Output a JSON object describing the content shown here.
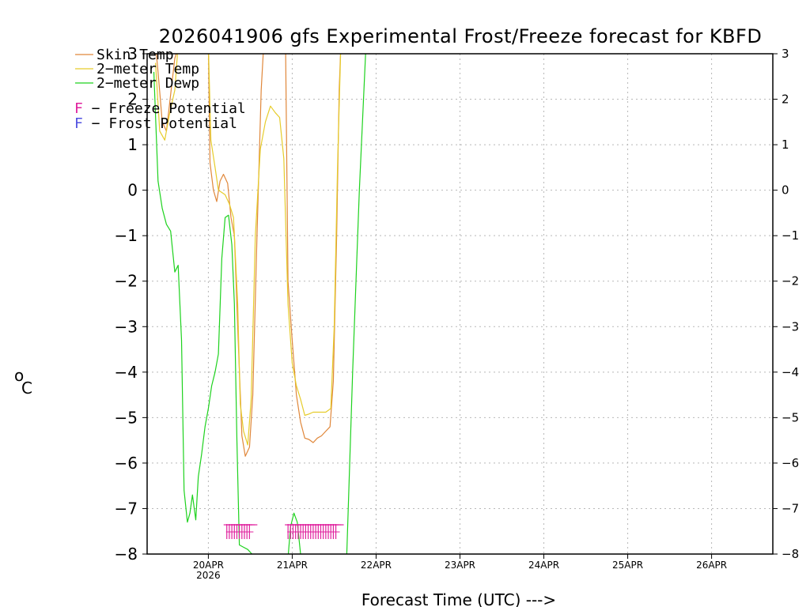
{
  "chart_data": {
    "type": "line",
    "title": "2026041906 gfs Experimental Frost/Freeze forecast for KBFD",
    "xlabel": "Forecast Time (UTC) --->",
    "ylabel": "°C",
    "ylabel_unit": "o",
    "ylabel_letter": "C",
    "ylim": [
      -8,
      3
    ],
    "xlim_days": [
      -0.73,
      6.73
    ],
    "y_ticks": [
      3,
      2,
      1,
      0,
      -1,
      -2,
      -3,
      -4,
      -5,
      -6,
      -7,
      -8
    ],
    "y_tick_labels_left": [
      "3",
      "2",
      "1",
      "0",
      "−1",
      "−2",
      "−3",
      "−4",
      "−5",
      "−6",
      "−7",
      "−8"
    ],
    "y_tick_labels_right": [
      "3",
      "2",
      "1",
      "0",
      "−1",
      "−2",
      "−3",
      "−4",
      "−5",
      "−6",
      "−7",
      "−8"
    ],
    "x_ticks": [
      {
        "day": 0,
        "label": "20APR",
        "sublabel": "2026"
      },
      {
        "day": 1,
        "label": "21APR",
        "sublabel": ""
      },
      {
        "day": 2,
        "label": "22APR",
        "sublabel": ""
      },
      {
        "day": 3,
        "label": "23APR",
        "sublabel": ""
      },
      {
        "day": 4,
        "label": "24APR",
        "sublabel": ""
      },
      {
        "day": 5,
        "label": "25APR",
        "sublabel": ""
      },
      {
        "day": 6,
        "label": "26APR",
        "sublabel": ""
      }
    ],
    "grid": true,
    "legend": [
      {
        "name": "Skin Temp",
        "color": "#e0873a"
      },
      {
        "name": "2-meter Temp",
        "color": "#e6cc2a"
      },
      {
        "name": "2-meter Dewp",
        "color": "#1ed21e"
      }
    ],
    "legend_text": [
      "Skin Temp",
      "2−meter Temp",
      "2−meter Dewp"
    ],
    "annotations": [
      {
        "letter": "F",
        "text": " − Freeze Potential",
        "color": "#e0209e"
      },
      {
        "letter": "F",
        "text": " − Frost Potential",
        "color": "#5050e0"
      }
    ],
    "series": [
      {
        "name": "Skin Temp",
        "color": "#e0873a",
        "points": [
          [
            -0.63,
            3.2
          ],
          [
            -0.6,
            2.6
          ],
          [
            -0.55,
            1.5
          ],
          [
            -0.5,
            1.3
          ],
          [
            -0.45,
            2.1
          ],
          [
            -0.4,
            2.9
          ],
          [
            -0.35,
            3.2
          ],
          [
            0,
            3.2
          ],
          [
            0.02,
            0.6
          ],
          [
            0.06,
            0.0
          ],
          [
            0.1,
            -0.25
          ],
          [
            0.14,
            0.2
          ],
          [
            0.18,
            0.35
          ],
          [
            0.23,
            0.15
          ],
          [
            0.27,
            -0.6
          ],
          [
            0.31,
            -1.0
          ],
          [
            0.35,
            -3.0
          ],
          [
            0.4,
            -5.4
          ],
          [
            0.44,
            -5.85
          ],
          [
            0.49,
            -5.65
          ],
          [
            0.53,
            -4.5
          ],
          [
            0.58,
            -1.0
          ],
          [
            0.63,
            2.2
          ],
          [
            0.66,
            3.2
          ],
          [
            0.92,
            3.2
          ],
          [
            0.95,
            -2.0
          ],
          [
            1.0,
            -3.3
          ],
          [
            1.05,
            -4.5
          ],
          [
            1.1,
            -5.1
          ],
          [
            1.15,
            -5.45
          ],
          [
            1.2,
            -5.48
          ],
          [
            1.25,
            -5.55
          ],
          [
            1.3,
            -5.45
          ],
          [
            1.35,
            -5.4
          ],
          [
            1.4,
            -5.3
          ],
          [
            1.45,
            -5.2
          ],
          [
            1.49,
            -4.2
          ],
          [
            1.53,
            -1.0
          ],
          [
            1.56,
            2.2
          ],
          [
            1.58,
            3.2
          ]
        ]
      },
      {
        "name": "2-meter Temp",
        "color": "#e6cc2a",
        "points": [
          [
            -0.63,
            2.8
          ],
          [
            -0.58,
            1.3
          ],
          [
            -0.52,
            1.1
          ],
          [
            -0.46,
            1.7
          ],
          [
            -0.4,
            2.2
          ],
          [
            -0.36,
            3.2
          ],
          [
            0,
            3.2
          ],
          [
            0.03,
            1.1
          ],
          [
            0.08,
            0.5
          ],
          [
            0.12,
            0.0
          ],
          [
            0.16,
            -0.05
          ],
          [
            0.2,
            -0.1
          ],
          [
            0.25,
            -0.3
          ],
          [
            0.3,
            -0.6
          ],
          [
            0.35,
            -2.5
          ],
          [
            0.38,
            -4.7
          ],
          [
            0.42,
            -5.3
          ],
          [
            0.47,
            -5.6
          ],
          [
            0.51,
            -4.6
          ],
          [
            0.56,
            -1.0
          ],
          [
            0.62,
            0.9
          ],
          [
            0.68,
            1.5
          ],
          [
            0.74,
            1.85
          ],
          [
            0.8,
            1.7
          ],
          [
            0.85,
            1.6
          ],
          [
            0.9,
            0.7
          ],
          [
            0.95,
            -2.5
          ],
          [
            1.0,
            -3.8
          ],
          [
            1.05,
            -4.3
          ],
          [
            1.1,
            -4.6
          ],
          [
            1.15,
            -4.95
          ],
          [
            1.2,
            -4.92
          ],
          [
            1.25,
            -4.88
          ],
          [
            1.32,
            -4.88
          ],
          [
            1.4,
            -4.88
          ],
          [
            1.46,
            -4.8
          ],
          [
            1.5,
            -3.0
          ],
          [
            1.54,
            0.5
          ],
          [
            1.58,
            3.2
          ]
        ]
      },
      {
        "name": "2-meter Dewp",
        "color": "#1ed21e",
        "points": [
          [
            -0.65,
            2.6
          ],
          [
            -0.6,
            0.2
          ],
          [
            -0.55,
            -0.4
          ],
          [
            -0.5,
            -0.75
          ],
          [
            -0.45,
            -0.9
          ],
          [
            -0.4,
            -1.8
          ],
          [
            -0.36,
            -1.65
          ],
          [
            -0.32,
            -3.3
          ],
          [
            -0.29,
            -6.6
          ],
          [
            -0.25,
            -7.3
          ],
          [
            -0.22,
            -7.1
          ],
          [
            -0.19,
            -6.7
          ],
          [
            -0.15,
            -7.25
          ],
          [
            -0.12,
            -6.3
          ],
          [
            -0.08,
            -5.8
          ],
          [
            -0.04,
            -5.2
          ],
          [
            0.0,
            -4.8
          ],
          [
            0.04,
            -4.3
          ],
          [
            0.08,
            -4.0
          ],
          [
            0.12,
            -3.6
          ],
          [
            0.16,
            -1.5
          ],
          [
            0.2,
            -0.6
          ],
          [
            0.24,
            -0.55
          ],
          [
            0.28,
            -1.2
          ],
          [
            0.31,
            -2.5
          ],
          [
            0.34,
            -5.5
          ],
          [
            0.37,
            -7.8
          ],
          [
            0.42,
            -7.85
          ],
          [
            0.47,
            -7.9
          ],
          [
            0.52,
            -8.0
          ],
          [
            0.56,
            -8.3
          ],
          [
            0.94,
            -8.3
          ],
          [
            0.98,
            -7.4
          ],
          [
            1.02,
            -7.1
          ],
          [
            1.06,
            -7.3
          ],
          [
            1.1,
            -8.0
          ],
          [
            1.14,
            -8.3
          ],
          [
            1.62,
            -8.3
          ],
          [
            1.65,
            -8.0
          ],
          [
            1.72,
            -4.0
          ],
          [
            1.8,
            0.0
          ],
          [
            1.88,
            3.2
          ]
        ]
      }
    ],
    "freeze_markers": {
      "color": "#e0209e",
      "letter": "F",
      "days": [
        0.22,
        0.25,
        0.28,
        0.31,
        0.34,
        0.37,
        0.4,
        0.43,
        0.46,
        0.49,
        0.95,
        0.98,
        1.01,
        1.04,
        1.07,
        1.1,
        1.13,
        1.16,
        1.19,
        1.22,
        1.25,
        1.28,
        1.31,
        1.34,
        1.37,
        1.4,
        1.43,
        1.46,
        1.49,
        1.52
      ]
    }
  }
}
